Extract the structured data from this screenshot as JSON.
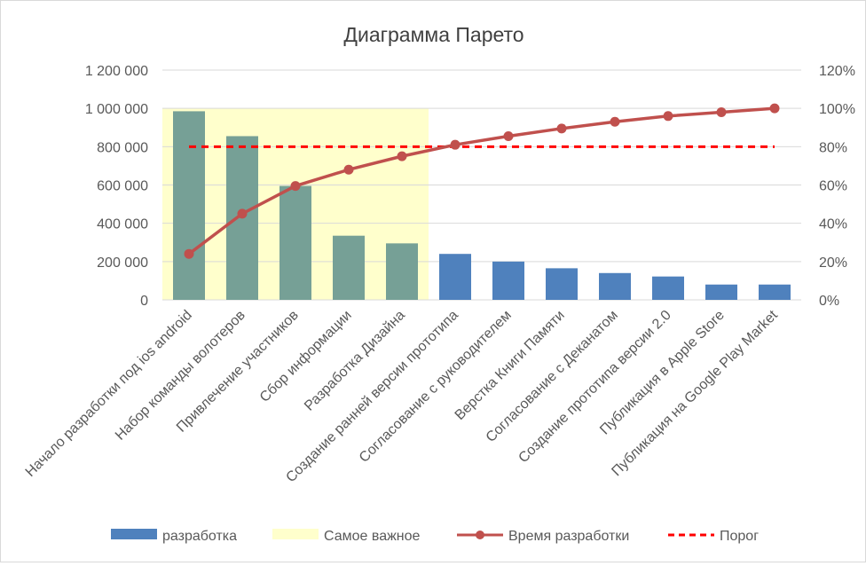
{
  "chart_data": {
    "type": "bar",
    "title": "Диаграмма Парето",
    "categories": [
      "Начало разработки под ios android",
      "Набор команды волотеров",
      "Привлечение участников",
      "Сбор информации",
      "Разработка Дизайна",
      "Создание ранней версии прототипа",
      "Согласование с руководителем",
      "Верстка Книги Памяти",
      "Согласование с Деканатом",
      "Создание прототипа версии 2.0",
      "Публикация в Apple Store",
      "Публикация на Google Play Market"
    ],
    "series": [
      {
        "name": "разработка",
        "type": "bar",
        "axis": "left",
        "values": [
          985000,
          855000,
          595000,
          335000,
          295000,
          240000,
          200000,
          165000,
          140000,
          122000,
          80000,
          80000
        ]
      },
      {
        "name": "Время разработки",
        "type": "line",
        "axis": "right",
        "values": [
          0.24,
          0.45,
          0.595,
          0.68,
          0.75,
          0.81,
          0.855,
          0.895,
          0.93,
          0.96,
          0.98,
          1.0
        ]
      },
      {
        "name": "Порог",
        "type": "line",
        "axis": "right",
        "style": "dashed",
        "values": [
          0.8,
          0.8,
          0.8,
          0.8,
          0.8,
          0.8,
          0.8,
          0.8,
          0.8,
          0.8,
          0.8,
          0.8
        ]
      }
    ],
    "highlight": {
      "name": "Самое важное",
      "from_category": 0,
      "to_category": 4,
      "range": [
        0,
        1000000
      ],
      "color": "#ffffcc"
    },
    "ylim": [
      0,
      1200000
    ],
    "y_ticks": [
      0,
      200000,
      400000,
      600000,
      800000,
      1000000,
      1200000
    ],
    "y_tick_labels": [
      "0",
      "200 000",
      "400 000",
      "600 000",
      "800 000",
      "1 000 000",
      "1 200 000"
    ],
    "y2lim": [
      0,
      1.2
    ],
    "y2_ticks": [
      0,
      0.2,
      0.4,
      0.6,
      0.8,
      1.0,
      1.2
    ],
    "y2_tick_labels": [
      "0%",
      "20%",
      "40%",
      "60%",
      "80%",
      "100%",
      "120%"
    ],
    "grid": true,
    "legend_position": "bottom",
    "legend": [
      {
        "label": "разработка",
        "kind": "bar"
      },
      {
        "label": "Самое важное",
        "kind": "area"
      },
      {
        "label": "Время разработки",
        "kind": "line-marker"
      },
      {
        "label": "Порог",
        "kind": "dashed"
      }
    ],
    "colors": {
      "bar": "#4f81bd",
      "bar_highlighted": "#76a096",
      "highlight": "#ffffcc",
      "cumulative_line": "#c0504d",
      "threshold": "#ff0000",
      "grid": "#d9d9d9",
      "text": "#595959",
      "title": "#404040"
    }
  }
}
